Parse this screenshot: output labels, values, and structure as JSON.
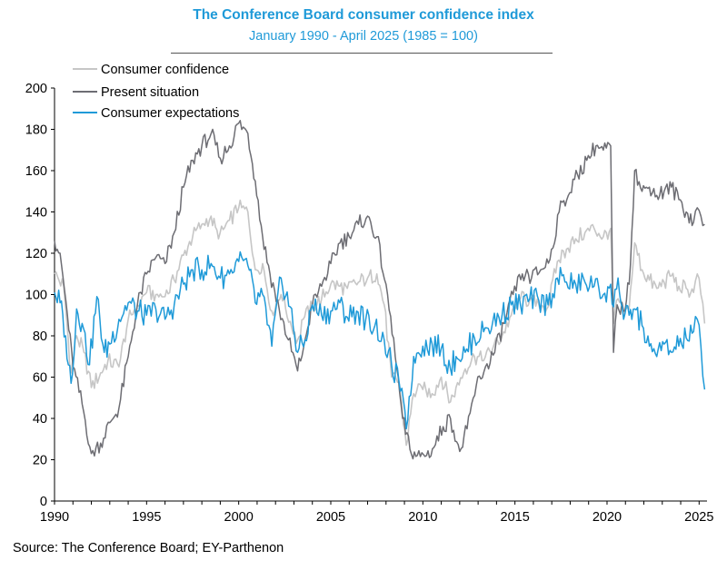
{
  "chart_data": {
    "type": "line",
    "title": "The Conference Board consumer confidence index",
    "subtitle": "January 1990 - April 2025 (1985 = 100)",
    "source": "Source: The Conference Board; EY-Parthenon",
    "xlabel": "",
    "ylabel": "",
    "xlim": [
      1990,
      2025.33
    ],
    "ylim": [
      0,
      200
    ],
    "x_ticks": [
      "1990",
      "1995",
      "2000",
      "2005",
      "2010",
      "2015",
      "2020",
      "2025"
    ],
    "y_ticks": [
      "0",
      "20",
      "40",
      "60",
      "80",
      "100",
      "120",
      "140",
      "160",
      "180",
      "200"
    ],
    "grid": false,
    "legend_position": "top-left",
    "series": [
      {
        "name": "Consumer confidence",
        "color": "#c6c6c6",
        "x": [
          1990.0,
          1990.5,
          1990.9,
          1991.2,
          1991.6,
          1992.0,
          1992.5,
          1992.9,
          1993.5,
          1994.0,
          1994.5,
          1995.0,
          1995.5,
          1996.0,
          1996.5,
          1997.0,
          1997.5,
          1998.0,
          1998.5,
          1998.9,
          1999.5,
          2000.0,
          2000.5,
          2000.9,
          2001.3,
          2001.8,
          2002.3,
          2002.8,
          2003.2,
          2003.5,
          2004.0,
          2004.5,
          2005.0,
          2005.5,
          2005.9,
          2006.5,
          2007.0,
          2007.5,
          2007.9,
          2008.3,
          2008.7,
          2009.1,
          2009.5,
          2010.0,
          2010.5,
          2011.0,
          2011.5,
          2011.8,
          2012.3,
          2012.8,
          2013.3,
          2013.8,
          2014.3,
          2014.8,
          2015.3,
          2015.8,
          2016.3,
          2016.8,
          2017.3,
          2017.8,
          2018.3,
          2018.8,
          2019.3,
          2019.8,
          2020.2,
          2020.35,
          2020.6,
          2020.9,
          2021.2,
          2021.5,
          2021.9,
          2022.3,
          2022.7,
          2023.1,
          2023.5,
          2023.9,
          2024.3,
          2024.7,
          2024.9,
          2025.1,
          2025.3
        ],
        "y": [
          110,
          104,
          62,
          80,
          72,
          55,
          62,
          68,
          65,
          88,
          95,
          101,
          100,
          99,
          107,
          119,
          128,
          134,
          138,
          127,
          136,
          142,
          140,
          112,
          115,
          92,
          100,
          87,
          78,
          88,
          94,
          98,
          105,
          104,
          103,
          106,
          108,
          110,
          95,
          60,
          58,
          27,
          52,
          54,
          52,
          60,
          48,
          55,
          64,
          70,
          68,
          74,
          80,
          90,
          98,
          97,
          95,
          94,
          116,
          122,
          127,
          130,
          132,
          128,
          132,
          86,
          98,
          90,
          93,
          125,
          112,
          107,
          103,
          106,
          109,
          104,
          103,
          101,
          110,
          100,
          86
        ]
      },
      {
        "name": "Present situation",
        "color": "#6d6d73",
        "x": [
          1990.0,
          1990.3,
          1990.7,
          1991.0,
          1991.5,
          1992.0,
          1992.5,
          1993.0,
          1993.5,
          1994.0,
          1994.5,
          1995.0,
          1995.5,
          1996.0,
          1996.5,
          1997.0,
          1997.5,
          1998.0,
          1998.5,
          1999.0,
          1999.5,
          2000.0,
          2000.5,
          2000.9,
          2001.3,
          2001.7,
          2002.2,
          2002.7,
          2003.2,
          2003.6,
          2004.0,
          2004.5,
          2005.0,
          2005.5,
          2006.0,
          2006.5,
          2007.0,
          2007.5,
          2008.0,
          2008.5,
          2008.9,
          2009.3,
          2009.7,
          2010.2,
          2010.6,
          2011.1,
          2011.5,
          2012.0,
          2012.4,
          2012.9,
          2013.4,
          2013.9,
          2014.4,
          2014.9,
          2015.4,
          2015.9,
          2016.4,
          2016.9,
          2017.4,
          2017.9,
          2018.4,
          2018.9,
          2019.4,
          2019.8,
          2020.2,
          2020.35,
          2020.55,
          2020.9,
          2021.2,
          2021.5,
          2021.9,
          2022.3,
          2022.7,
          2023.1,
          2023.5,
          2023.9,
          2024.3,
          2024.7,
          2024.9,
          2025.1,
          2025.3
        ],
        "y": [
          126,
          120,
          90,
          65,
          47,
          23,
          28,
          38,
          45,
          70,
          95,
          110,
          118,
          115,
          130,
          152,
          165,
          172,
          178,
          166,
          172,
          183,
          178,
          155,
          128,
          110,
          93,
          78,
          63,
          78,
          95,
          104,
          115,
          125,
          128,
          134,
          138,
          128,
          105,
          70,
          40,
          25,
          22,
          22,
          26,
          36,
          40,
          24,
          35,
          56,
          65,
          72,
          86,
          100,
          110,
          108,
          112,
          117,
          140,
          148,
          158,
          165,
          172,
          170,
          172,
          72,
          95,
          92,
          105,
          160,
          150,
          152,
          148,
          150,
          152,
          146,
          140,
          135,
          142,
          138,
          134
        ]
      },
      {
        "name": "Consumer expectations",
        "color": "#1f9ad8",
        "x": [
          1990.0,
          1990.3,
          1990.6,
          1990.9,
          1991.2,
          1991.5,
          1991.9,
          1992.3,
          1992.7,
          1993.0,
          1993.5,
          1994.0,
          1994.5,
          1995.0,
          1995.5,
          1996.0,
          1996.5,
          1997.0,
          1997.5,
          1998.0,
          1998.5,
          1999.0,
          1999.5,
          2000.0,
          2000.5,
          2000.9,
          2001.3,
          2001.8,
          2002.3,
          2002.8,
          2003.2,
          2003.6,
          2004.0,
          2004.5,
          2005.0,
          2005.5,
          2005.9,
          2006.4,
          2006.9,
          2007.4,
          2007.9,
          2008.3,
          2008.7,
          2009.1,
          2009.5,
          2010.0,
          2010.5,
          2011.0,
          2011.5,
          2011.8,
          2012.3,
          2012.8,
          2013.3,
          2013.8,
          2014.3,
          2014.8,
          2015.3,
          2015.8,
          2016.3,
          2016.8,
          2017.3,
          2017.8,
          2018.3,
          2018.8,
          2019.3,
          2019.8,
          2020.2,
          2020.35,
          2020.6,
          2020.9,
          2021.2,
          2021.5,
          2021.9,
          2022.3,
          2022.7,
          2023.1,
          2023.5,
          2023.9,
          2024.3,
          2024.7,
          2024.9,
          2025.1,
          2025.3
        ],
        "y": [
          101,
          96,
          80,
          57,
          93,
          86,
          66,
          99,
          72,
          76,
          88,
          96,
          92,
          90,
          93,
          88,
          95,
          105,
          112,
          112,
          115,
          108,
          110,
          116,
          114,
          96,
          100,
          75,
          108,
          94,
          72,
          78,
          95,
          90,
          92,
          96,
          89,
          92,
          88,
          85,
          78,
          66,
          58,
          35,
          70,
          75,
          76,
          74,
          64,
          70,
          72,
          79,
          82,
          87,
          90,
          95,
          95,
          98,
          97,
          95,
          108,
          106,
          105,
          106,
          104,
          100,
          105,
          94,
          108,
          88,
          90,
          93,
          85,
          75,
          70,
          76,
          72,
          75,
          79,
          82,
          88,
          75,
          54
        ]
      }
    ]
  }
}
